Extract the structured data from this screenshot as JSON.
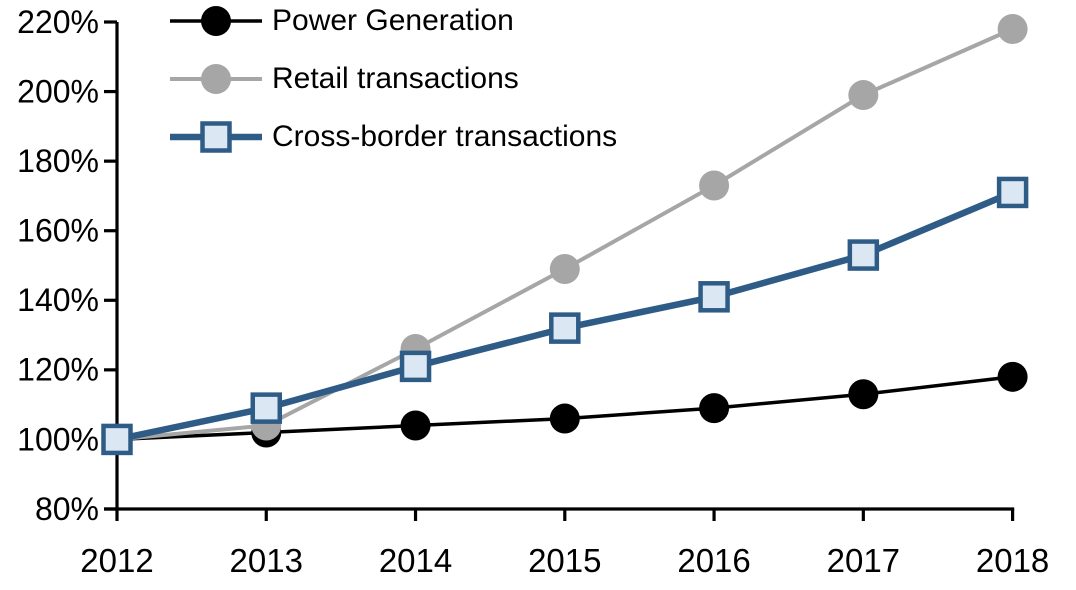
{
  "chart_data": {
    "type": "line",
    "title": "",
    "xlabel": "",
    "ylabel": "",
    "x": [
      2012,
      2013,
      2014,
      2015,
      2016,
      2017,
      2018
    ],
    "x_tick_labels": [
      "2012",
      "2013",
      "2014",
      "2015",
      "2016",
      "2017",
      "2018"
    ],
    "ylim": [
      80,
      220
    ],
    "ytick_step": 20,
    "y_tick_labels": [
      "220%",
      "200%",
      "180%",
      "160%",
      "140%",
      "120%",
      "100%",
      "80%"
    ],
    "grid": false,
    "legend_position": "top-left-inside",
    "index_note": "all series indexed to 100% in 2012",
    "series": [
      {
        "name": "Power Generation",
        "marker": "circle",
        "line_color": "#000000",
        "marker_fill": "#000000",
        "marker_stroke": "#000000",
        "values": [
          100,
          102,
          104,
          106,
          109,
          113,
          118
        ]
      },
      {
        "name": "Retail transactions",
        "marker": "circle",
        "line_color": "#a6a6a6",
        "marker_fill": "#a6a6a6",
        "marker_stroke": "#a6a6a6",
        "values": [
          100,
          104,
          126,
          149,
          173,
          199,
          218
        ]
      },
      {
        "name": "Cross-border transactions",
        "marker": "square",
        "line_color": "#2e5c87",
        "marker_fill": "#dbe8f4",
        "marker_stroke": "#2e5c87",
        "values": [
          100,
          109,
          121,
          132,
          141,
          153,
          171
        ]
      }
    ]
  },
  "axes": {
    "axis_color": "#000000",
    "tick_label_color": "#000000",
    "background": "#ffffff"
  }
}
